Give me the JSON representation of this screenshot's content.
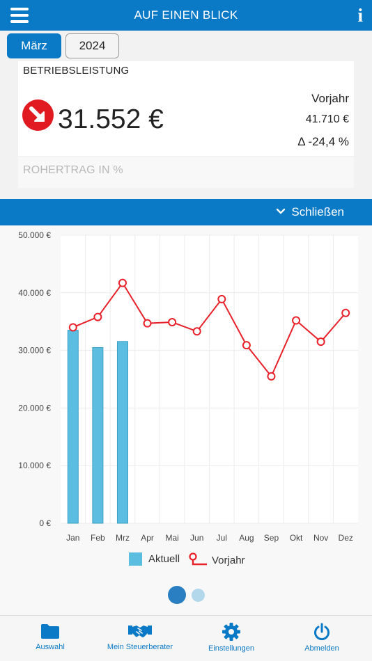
{
  "header": {
    "title": "AUF EINEN BLICK",
    "info_label": "i"
  },
  "period": {
    "month": "März",
    "year": "2024"
  },
  "kpi": {
    "label": "BETRIEBSLEISTUNG",
    "value": "31.552 €",
    "trend_icon": "arrow-down-right-icon",
    "previous_label": "Vorjahr",
    "previous_value": "41.710 €",
    "delta": "Δ -24,4 %"
  },
  "kpi2": {
    "label": "ROHERTRAG IN %"
  },
  "collapse": {
    "label": "Schließen"
  },
  "colors": {
    "primary": "#0a79c6",
    "bar": "#5bbde0",
    "line": "#e8212b",
    "alert": "#e11a22"
  },
  "chart_data": {
    "type": "bar+line",
    "categories": [
      "Jan",
      "Feb",
      "Mrz",
      "Apr",
      "Mai",
      "Jun",
      "Jul",
      "Aug",
      "Sep",
      "Okt",
      "Nov",
      "Dez"
    ],
    "y_ticks": [
      "0 €",
      "10.000 €",
      "20.000 €",
      "30.000 €",
      "40.000 €",
      "50.000 €"
    ],
    "ylim": [
      0,
      50000
    ],
    "series": [
      {
        "name": "Aktuell",
        "type": "bar",
        "values": [
          33500,
          30500,
          31552,
          null,
          null,
          null,
          null,
          null,
          null,
          null,
          null,
          null
        ]
      },
      {
        "name": "Vorjahr",
        "type": "line",
        "values": [
          34000,
          35800,
          41710,
          34700,
          34900,
          33300,
          38900,
          30900,
          25500,
          35200,
          31500,
          36500
        ]
      }
    ],
    "grid": true,
    "legend": "bottom"
  },
  "pager": {
    "pages": 2,
    "active": 1
  },
  "tabs": [
    {
      "label": "Auswahl",
      "icon": "folder-icon"
    },
    {
      "label": "Mein Steuerberater",
      "icon": "handshake-icon"
    },
    {
      "label": "Einstellungen",
      "icon": "gear-icon"
    },
    {
      "label": "Abmelden",
      "icon": "power-icon"
    }
  ]
}
